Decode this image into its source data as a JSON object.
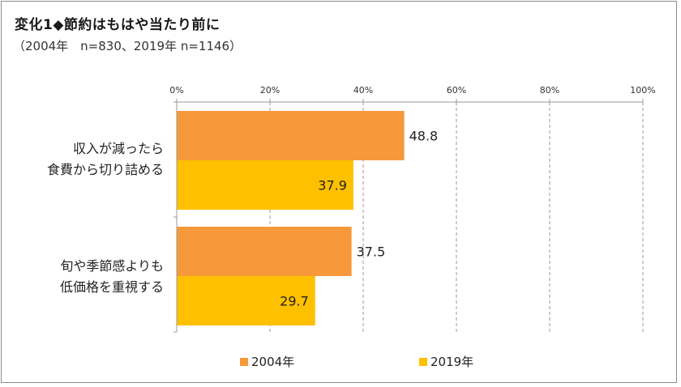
{
  "header": {
    "title": "変化1◆節約はもはや当たり前に",
    "subtitle": "（2004年　n=830、2019年 n=1146）"
  },
  "colors": {
    "s2004": "#f7993b",
    "s2019": "#ffc000",
    "grid": "#9a9a9a",
    "axis": "#9a9a9a"
  },
  "chart_data": {
    "type": "bar",
    "orientation": "horizontal",
    "title": "変化1◆節約はもはや当たり前に",
    "categories": [
      [
        "収入が減ったら",
        "食費から切り詰める"
      ],
      [
        "旬や季節感よりも",
        "低価格を重視する"
      ]
    ],
    "series": [
      {
        "name": "2004年",
        "values": [
          48.8,
          37.5
        ]
      },
      {
        "name": "2019年",
        "values": [
          37.9,
          29.7
        ]
      }
    ],
    "xlim": [
      0,
      100
    ],
    "ticks": [
      0,
      20,
      40,
      60,
      80,
      100
    ],
    "tick_labels": [
      "0%",
      "20%",
      "40%",
      "60%",
      "80%",
      "100%"
    ],
    "data_labels": [
      [
        "48.8",
        "37.5"
      ],
      [
        "37.9",
        "29.7"
      ]
    ],
    "legend": {
      "position": "bottom",
      "items": [
        "2004年",
        "2019年"
      ]
    },
    "grid": true
  }
}
